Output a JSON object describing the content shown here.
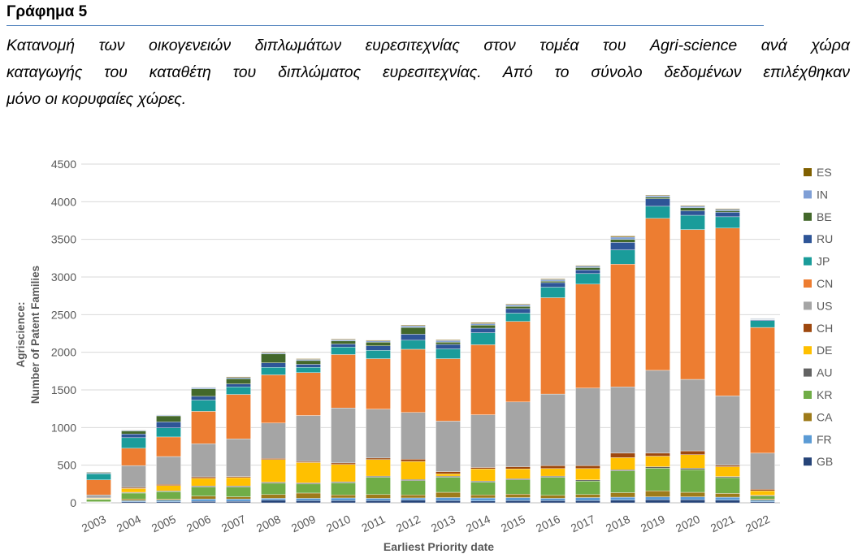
{
  "figure": {
    "label": "Γράφημα 5",
    "caption_lines": [
      "Κατανομή των οικογενειών διπλωμάτων ευρεσιτεχνίας στον τομέα του Agri-science ανά χώρα",
      "καταγωγής του καταθέτη του διπλώματος ευρεσιτεχνίας. Από το σύνολο δεδομένων επιλέχθηκαν",
      "μόνο οι κορυφαίες χώρες."
    ]
  },
  "chart_data": {
    "type": "bar",
    "stacked": true,
    "title": "",
    "xlabel": "Earliest Priority date",
    "ylabel_lines": [
      "Agriscience:",
      "Number of Patent Families"
    ],
    "ylim": [
      0,
      4500
    ],
    "yticks": [
      0,
      500,
      1000,
      1500,
      2000,
      2500,
      3000,
      3500,
      4000,
      4500
    ],
    "grid": true,
    "legend_position": "right",
    "categories": [
      "2003",
      "2004",
      "2005",
      "2006",
      "2007",
      "2008",
      "2009",
      "2010",
      "2011",
      "2012",
      "2013",
      "2014",
      "2015",
      "2016",
      "2017",
      "2018",
      "2019",
      "2020",
      "2021",
      "2022"
    ],
    "series": [
      {
        "name": "GB",
        "color": "#264478",
        "values": [
          5,
          15,
          15,
          20,
          20,
          35,
          30,
          30,
          30,
          35,
          30,
          25,
          30,
          30,
          30,
          35,
          40,
          40,
          35,
          15
        ]
      },
      {
        "name": "FR",
        "color": "#5b9bd5",
        "values": [
          5,
          15,
          20,
          30,
          30,
          25,
          30,
          35,
          30,
          30,
          40,
          40,
          40,
          30,
          40,
          40,
          40,
          40,
          40,
          20
        ]
      },
      {
        "name": "CA",
        "color": "#9e7b1a",
        "values": [
          5,
          20,
          15,
          40,
          30,
          50,
          70,
          40,
          50,
          40,
          70,
          40,
          45,
          40,
          40,
          60,
          80,
          60,
          50,
          15
        ]
      },
      {
        "name": "KR",
        "color": "#70ad47",
        "values": [
          30,
          80,
          100,
          120,
          130,
          150,
          120,
          160,
          230,
          190,
          200,
          170,
          190,
          240,
          180,
          290,
          300,
          300,
          210,
          40
        ]
      },
      {
        "name": "AU",
        "color": "#636363",
        "values": [
          5,
          10,
          10,
          15,
          15,
          15,
          15,
          15,
          15,
          15,
          15,
          15,
          15,
          15,
          15,
          15,
          20,
          20,
          15,
          10
        ]
      },
      {
        "name": "DE",
        "color": "#ffc000",
        "values": [
          10,
          50,
          70,
          100,
          110,
          300,
          270,
          230,
          220,
          240,
          30,
          160,
          130,
          100,
          150,
          160,
          140,
          180,
          130,
          60
        ]
      },
      {
        "name": "CH",
        "color": "#9e480e",
        "values": [
          5,
          15,
          15,
          20,
          15,
          15,
          15,
          20,
          20,
          30,
          30,
          20,
          30,
          40,
          40,
          60,
          40,
          50,
          20,
          20
        ]
      },
      {
        "name": "US",
        "color": "#a5a5a5",
        "values": [
          40,
          290,
          370,
          440,
          500,
          470,
          610,
          730,
          650,
          620,
          670,
          700,
          860,
          950,
          1030,
          880,
          1100,
          950,
          920,
          480
        ]
      },
      {
        "name": "CN",
        "color": "#ed7d31",
        "values": [
          200,
          230,
          260,
          430,
          590,
          640,
          570,
          710,
          670,
          840,
          830,
          930,
          1070,
          1280,
          1380,
          1630,
          2020,
          1990,
          2230,
          1670
        ]
      },
      {
        "name": "JP",
        "color": "#1a9c9a",
        "values": [
          80,
          140,
          120,
          150,
          100,
          100,
          70,
          100,
          110,
          120,
          130,
          160,
          110,
          140,
          140,
          190,
          160,
          190,
          150,
          90
        ]
      },
      {
        "name": "RU",
        "color": "#2e5597",
        "values": [
          10,
          50,
          80,
          50,
          40,
          60,
          40,
          40,
          60,
          80,
          60,
          60,
          60,
          60,
          50,
          100,
          100,
          60,
          60,
          10
        ]
      },
      {
        "name": "BE",
        "color": "#43682b",
        "values": [
          10,
          40,
          80,
          100,
          70,
          120,
          50,
          40,
          50,
          90,
          30,
          40,
          30,
          20,
          30,
          40,
          20,
          40,
          20,
          5
        ]
      },
      {
        "name": "IN",
        "color": "#7f9fd6",
        "values": [
          0,
          10,
          10,
          15,
          15,
          15,
          15,
          15,
          15,
          20,
          20,
          20,
          20,
          20,
          20,
          30,
          20,
          20,
          20,
          10
        ]
      },
      {
        "name": "ES",
        "color": "#806000",
        "values": [
          0,
          5,
          5,
          5,
          10,
          10,
          10,
          10,
          10,
          10,
          10,
          15,
          10,
          10,
          10,
          15,
          10,
          10,
          10,
          5
        ]
      }
    ]
  }
}
